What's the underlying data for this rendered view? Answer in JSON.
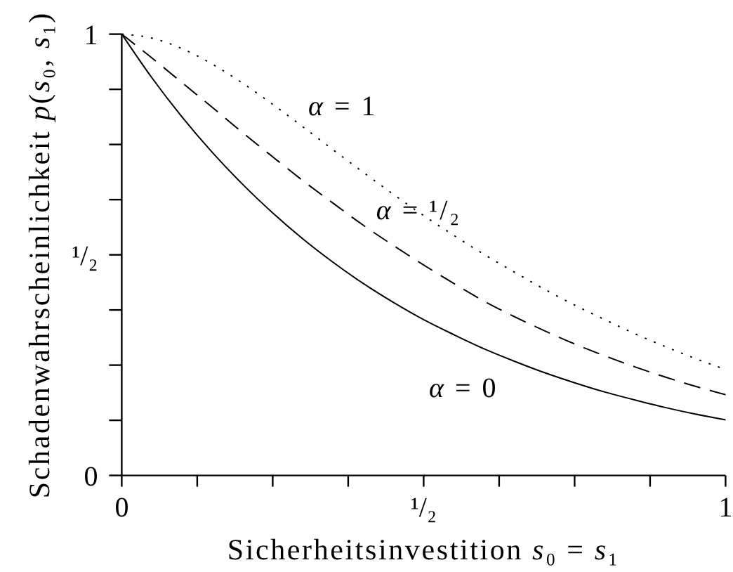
{
  "chart_data": {
    "type": "line",
    "xlabel": "Sicherheitsinvestition s₀ = s₁",
    "ylabel": "Schadenwahrscheinlichkeit p(s₀, s₁)",
    "x": [
      0,
      0.05,
      0.1,
      0.15,
      0.2,
      0.25,
      0.3,
      0.35,
      0.4,
      0.45,
      0.5,
      0.55,
      0.6,
      0.65,
      0.7,
      0.75,
      0.8,
      0.85,
      0.9,
      0.95,
      1
    ],
    "series": [
      {
        "name": "α = 1",
        "color": "#000000",
        "line_style": "dotted",
        "values": [
          1,
          0.991,
          0.967,
          0.932,
          0.889,
          0.841,
          0.79,
          0.738,
          0.687,
          0.637,
          0.589,
          0.544,
          0.501,
          0.461,
          0.422,
          0.386,
          0.353,
          0.321,
          0.292,
          0.265,
          0.24
        ]
      },
      {
        "name": "α = ¹/₂",
        "color": "#000000",
        "line_style": "dashed",
        "values": [
          1,
          0.946,
          0.89,
          0.834,
          0.777,
          0.722,
          0.668,
          0.617,
          0.567,
          0.521,
          0.477,
          0.435,
          0.395,
          0.36,
          0.328,
          0.298,
          0.271,
          0.246,
          0.223,
          0.202,
          0.183
        ]
      },
      {
        "name": "α = 0",
        "color": "#000000",
        "line_style": "solid",
        "values": [
          1,
          0.901,
          0.812,
          0.732,
          0.66,
          0.595,
          0.536,
          0.483,
          0.435,
          0.392,
          0.353,
          0.319,
          0.287,
          0.259,
          0.233,
          0.21,
          0.189,
          0.171,
          0.154,
          0.139,
          0.126
        ]
      }
    ],
    "xlim": [
      0,
      1
    ],
    "ylim": [
      0,
      1
    ],
    "xticks": [
      0,
      {
        "value": 0.125,
        "label": null
      },
      {
        "value": 0.25,
        "label": null
      },
      {
        "value": 0.375,
        "label": null
      },
      {
        "value": 0.5,
        "label": "¹/₂"
      },
      {
        "value": 0.625,
        "label": null
      },
      {
        "value": 0.75,
        "label": null
      },
      {
        "value": 0.875,
        "label": null
      },
      1
    ],
    "yticks": [
      0,
      {
        "value": 0.125,
        "label": null
      },
      {
        "value": 0.25,
        "label": null
      },
      {
        "value": 0.375,
        "label": null
      },
      {
        "value": 0.5,
        "label": "¹/₂"
      },
      {
        "value": 0.625,
        "label": null
      },
      {
        "value": 0.75,
        "label": null
      },
      {
        "value": 0.875,
        "label": null
      },
      1
    ]
  }
}
